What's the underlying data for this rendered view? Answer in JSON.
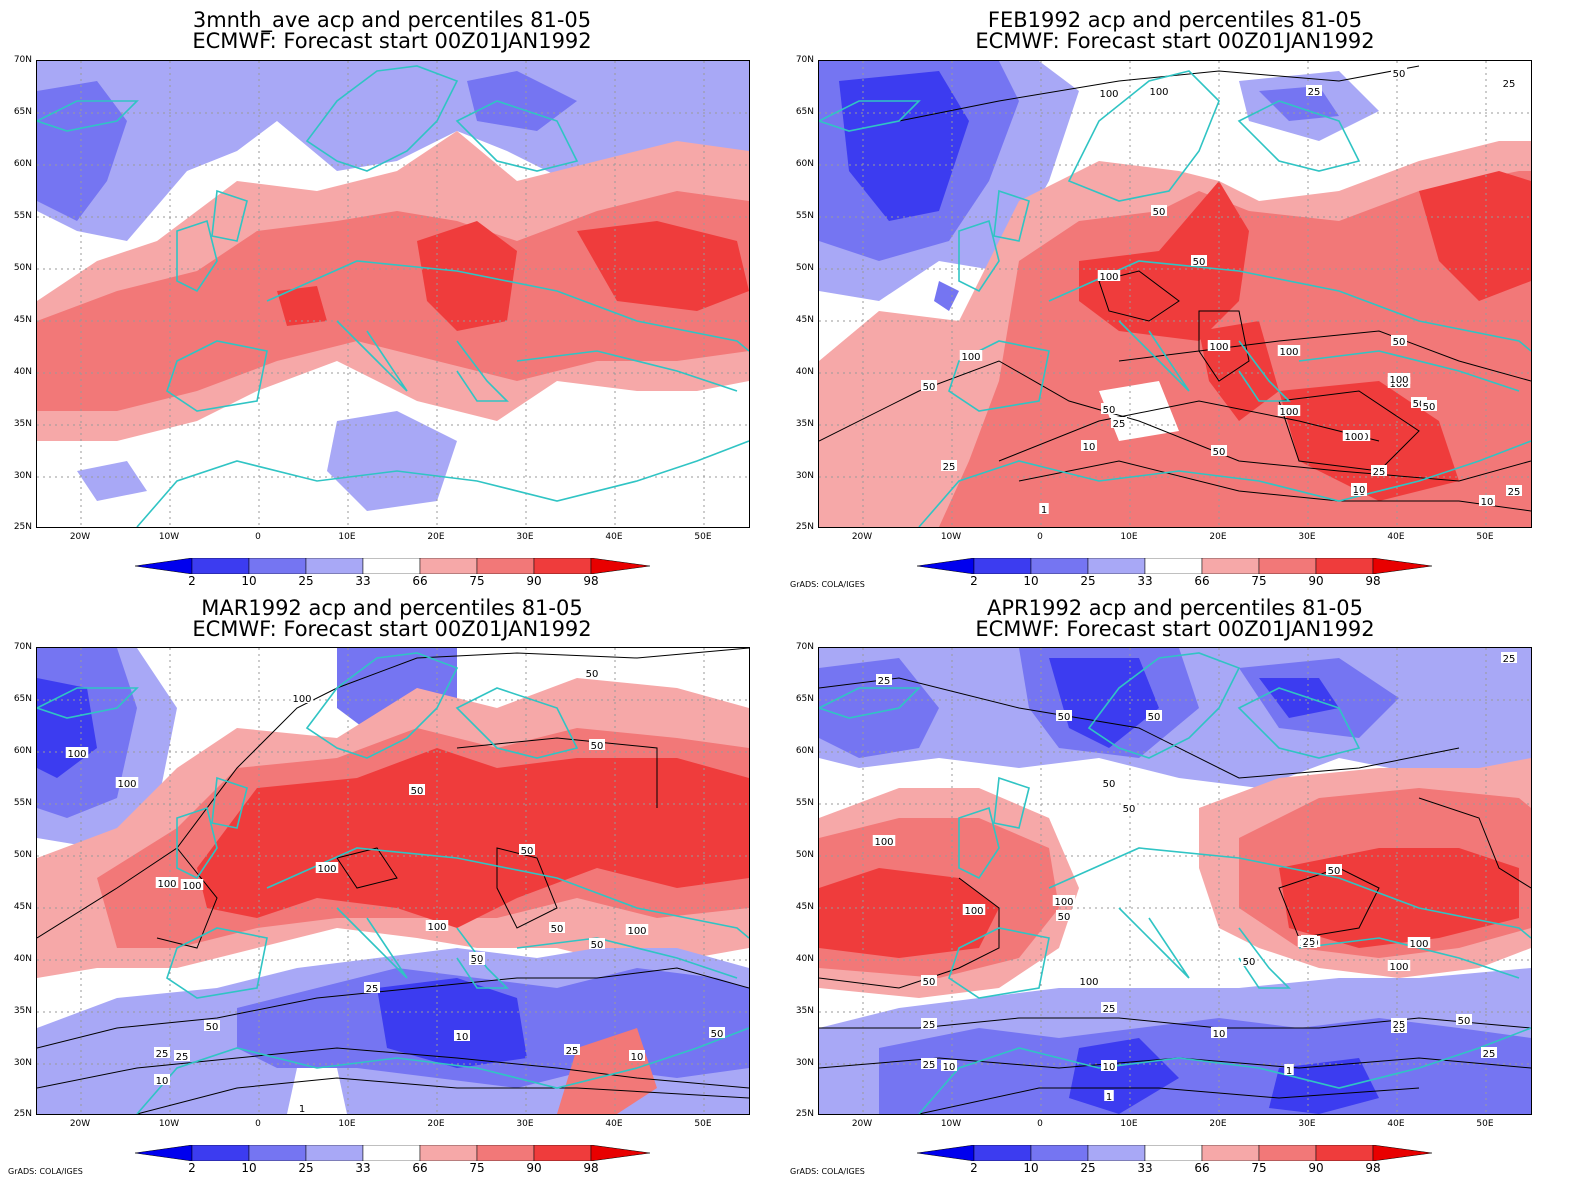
{
  "panels": [
    {
      "title1": "3mnth_ave acp and percentiles 81-05",
      "title2": "ECMWF: Forecast start 00Z01JAN1992",
      "credit": "",
      "contour_labels": []
    },
    {
      "title1": "FEB1992 acp and percentiles 81-05",
      "title2": "ECMWF: Forecast start 00Z01JAN1992",
      "credit": "GrADS: COLA/IGES",
      "contour_labels": [
        "50",
        "100",
        "100",
        "25",
        "25",
        "50",
        "50",
        "100",
        "100",
        "100",
        "50",
        "100",
        "50",
        "100",
        "100",
        "50",
        "50",
        "25",
        "10",
        "50",
        "100",
        "25",
        "25",
        "10",
        "10",
        "1",
        "100",
        "50",
        "10",
        "25",
        "100"
      ]
    },
    {
      "title1": "MAR1992 acp and percentiles 81-05",
      "title2": "ECMWF: Forecast start 00Z01JAN1992",
      "credit": "GrADS: COLA/IGES",
      "contour_labels": [
        "100",
        "100",
        "100",
        "50",
        "50",
        "50",
        "100",
        "100",
        "100",
        "50",
        "50",
        "100",
        "100",
        "25",
        "50",
        "25",
        "50",
        "50",
        "25",
        "10",
        "25",
        "10",
        "1",
        "10",
        "1",
        "50",
        "50"
      ]
    },
    {
      "title1": "APR1992 acp and percentiles 81-05",
      "title2": "ECMWF: Forecast start 00Z01JAN1992",
      "credit": "GrADS: COLA/IGES",
      "contour_labels": [
        "25",
        "50",
        "50",
        "50",
        "50",
        "50",
        "100",
        "100",
        "50",
        "100",
        "100",
        "100",
        "50",
        "100",
        "100",
        "50",
        "50",
        "25",
        "25",
        "25",
        "25",
        "10",
        "10",
        "10",
        "10",
        "25",
        "50",
        "1",
        "1",
        "25",
        "25"
      ]
    }
  ],
  "lat_labels": [
    "70N",
    "65N",
    "60N",
    "55N",
    "50N",
    "45N",
    "40N",
    "35N",
    "30N",
    "25N"
  ],
  "lon_labels": [
    "20W",
    "10W",
    "0",
    "10E",
    "20E",
    "30E",
    "40E",
    "50E"
  ],
  "colorbar_labels": [
    "2",
    "10",
    "25",
    "33",
    "66",
    "75",
    "90",
    "98"
  ],
  "colorbar_colors": [
    "#0000ee",
    "#3c3cf0",
    "#7575f2",
    "#a8a8f6",
    "#ffffff",
    "#f6a8a8",
    "#f27878",
    "#ef3c3c",
    "#e80000"
  ],
  "colors": {
    "land_outline": "#30c4c4",
    "grid": "#9a9a9a",
    "contour": "#000000"
  }
}
